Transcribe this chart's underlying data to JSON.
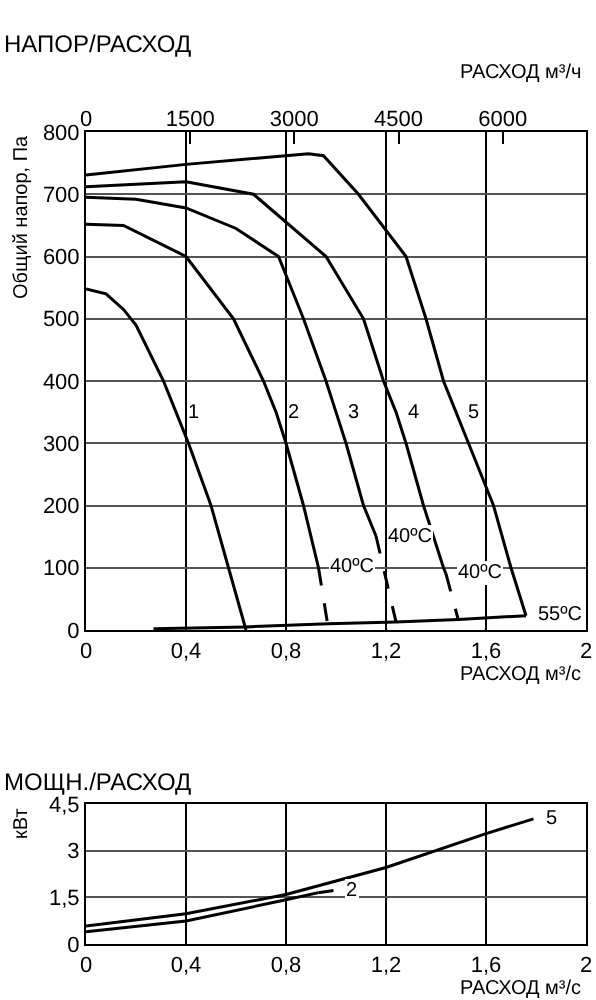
{
  "chart_data": [
    {
      "type": "line",
      "title": "НАПОР/РАСХОД",
      "xlabel": "РАСХОД м³/с",
      "ylabel": "Общий напор, Па",
      "x2label": "РАСХОД м³/ч",
      "xlim": [
        0,
        2
      ],
      "xticks": [
        0,
        {
          "value": 0.4,
          "label": "0,4"
        },
        {
          "value": 0.8,
          "label": "0,8"
        },
        {
          "value": 1.2,
          "label": "1,2"
        },
        {
          "value": 1.6,
          "label": "1,6"
        },
        2
      ],
      "x2lim": [
        0,
        7200
      ],
      "x2ticks": [
        0,
        1500,
        3000,
        4500,
        6000
      ],
      "ylim": [
        0,
        800
      ],
      "yticks": [
        0,
        100,
        200,
        300,
        400,
        500,
        600,
        700,
        800
      ],
      "grid": true,
      "series": [
        {
          "color": "#000000",
          "x": [
            0,
            0.08,
            0.15,
            0.2,
            0.31,
            0.36,
            0.41,
            0.5,
            0.57,
            0.64
          ],
          "values": [
            548,
            540,
            515,
            490,
            400,
            350,
            300,
            200,
            100,
            0
          ]
        },
        {
          "color": "#000000",
          "x": [
            0,
            0.15,
            0.4,
            0.59,
            0.71,
            0.76,
            0.8,
            0.87,
            0.93
          ],
          "values": [
            652,
            650,
            600,
            500,
            400,
            350,
            300,
            200,
            100
          ]
        },
        {
          "color": "#000000",
          "line_style": "dashed",
          "x": [
            0.93,
            0.965
          ],
          "values": [
            100,
            13
          ]
        },
        {
          "color": "#000000",
          "x": [
            0,
            0.2,
            0.4,
            0.6,
            0.77,
            0.87,
            0.96,
            1.0,
            1.04,
            1.11,
            1.16
          ],
          "values": [
            695,
            692,
            678,
            645,
            600,
            500,
            400,
            350,
            300,
            200,
            151
          ]
        },
        {
          "color": "#000000",
          "line_style": "dashed",
          "x": [
            1.16,
            1.24
          ],
          "values": [
            151,
            13
          ]
        },
        {
          "color": "#000000",
          "x": [
            0,
            0.4,
            0.67,
            0.96,
            1.11,
            1.19,
            1.24,
            1.28,
            1.35,
            1.43,
            1.44
          ],
          "values": [
            712,
            720,
            700,
            600,
            500,
            400,
            350,
            300,
            200,
            100,
            90
          ]
        },
        {
          "color": "#000000",
          "line_style": "dashed",
          "x": [
            1.44,
            1.49
          ],
          "values": [
            90,
            15
          ]
        },
        {
          "color": "#000000",
          "x": [
            0,
            0.4,
            0.89,
            0.95,
            1.09,
            1.28,
            1.36,
            1.43,
            1.48,
            1.53,
            1.63,
            1.7,
            1.76
          ],
          "values": [
            731,
            748,
            765,
            762,
            700,
            600,
            500,
            400,
            350,
            300,
            200,
            100,
            23
          ]
        },
        {
          "color": "#000000",
          "x": [
            0.27,
            0.64,
            0.97,
            1.24,
            1.49,
            1.76
          ],
          "values": [
            2,
            5,
            10,
            13,
            17,
            23
          ]
        }
      ],
      "annotations": [
        {
          "text": "1",
          "x": 0.36,
          "y": 350
        },
        {
          "text": "2",
          "x": 0.76,
          "y": 350
        },
        {
          "text": "3",
          "x": 1.0,
          "y": 350
        },
        {
          "text": "4",
          "x": 1.24,
          "y": 350
        },
        {
          "text": "5",
          "x": 1.48,
          "y": 350
        },
        {
          "text": "40ºC",
          "x": 0.93,
          "y": 100
        },
        {
          "text": "40ºC",
          "x": 1.16,
          "y": 151
        },
        {
          "text": "40ºC",
          "x": 1.44,
          "y": 90
        },
        {
          "text": "55ºC",
          "x": 1.76,
          "y": 23
        }
      ]
    },
    {
      "type": "line",
      "title": "МОЩН./РАСХОД",
      "xlabel": "РАСХОД м³/с",
      "ylabel": "кВт",
      "xlim": [
        0,
        2
      ],
      "xticks": [
        0,
        {
          "value": 0.4,
          "label": "0,4"
        },
        {
          "value": 0.8,
          "label": "0,8"
        },
        {
          "value": 1.2,
          "label": "1,2"
        },
        {
          "value": 1.6,
          "label": "1,6"
        },
        2
      ],
      "ylim": [
        0,
        4.5
      ],
      "yticks": [
        0,
        {
          "value": 1.5,
          "label": "1,5"
        },
        3,
        {
          "value": 4.5,
          "label": "4,5"
        }
      ],
      "grid": true,
      "series": [
        {
          "color": "#000000",
          "x": [
            0,
            0.4,
            0.8,
            1.2,
            1.6,
            1.79
          ],
          "values": [
            0.58,
            0.97,
            1.59,
            2.46,
            3.55,
            4.02
          ]
        },
        {
          "color": "#000000",
          "x": [
            0,
            0.4,
            0.8,
            0.93
          ],
          "values": [
            0.39,
            0.74,
            1.42,
            1.65
          ]
        },
        {
          "color": "#000000",
          "line_style": "dashed",
          "x": [
            0.93,
            0.99
          ],
          "values": [
            1.65,
            1.72
          ]
        }
      ],
      "annotations": [
        {
          "text": "5",
          "x": 1.79,
          "y": 4.02
        },
        {
          "text": "2",
          "x": 0.99,
          "y": 1.72
        }
      ]
    }
  ]
}
